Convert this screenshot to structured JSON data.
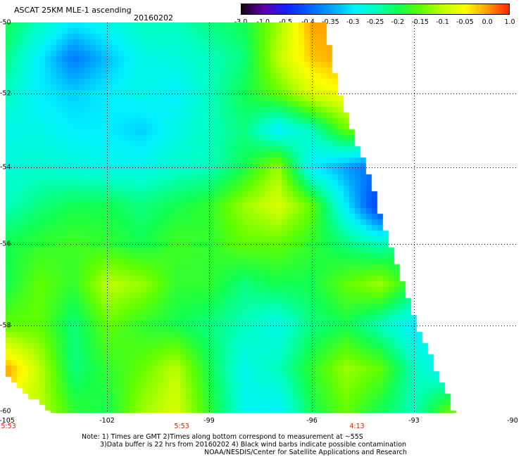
{
  "header": {
    "title": "ASCAT 25KM MLE-1 ascending",
    "date": "20160202"
  },
  "colorbar": {
    "labels": [
      "-3.0",
      "-1.0",
      "-0.5",
      "-0.4",
      "-0.35",
      "-0.3",
      "-0.25",
      "-0.2",
      "-0.15",
      "-0.1",
      "-0.05",
      "0.0",
      "1.0"
    ],
    "values": [
      -3.0,
      -1.0,
      -0.5,
      -0.4,
      -0.35,
      -0.3,
      -0.25,
      -0.2,
      -0.15,
      -0.1,
      -0.05,
      0.0,
      1.0
    ],
    "colors": [
      "#1a0018",
      "#6000b0",
      "#1020ff",
      "#0060ff",
      "#00a0ff",
      "#00f0ff",
      "#00ffc0",
      "#10ff50",
      "#60ff00",
      "#c0ff00",
      "#ffff00",
      "#ffa000",
      "#ff2000"
    ]
  },
  "axes": {
    "lat_labels": [
      "-50",
      "-52",
      "-54",
      "-56",
      "-58",
      "-60"
    ],
    "lon_labels": [
      "-105",
      "-102",
      "-99",
      "-96",
      "-93",
      "-90"
    ],
    "time_labels": [
      "5:53",
      "5:53",
      "4:13"
    ]
  },
  "notes": [
    "Note: 1) Times are GMT 2)Times along bottom correspond to measurement at ~55S",
    "3)Data buffer is 22 hrs from 20160202 4) Black wind barbs indicate possible contamination",
    "NOAA/NESDIS/Center for Satellite Applications and Research"
  ],
  "chart_data": {
    "type": "heatmap",
    "lon_range": [
      -105,
      -90
    ],
    "lat_range": [
      -50,
      -60
    ],
    "grid_lons": [
      -105,
      -104,
      -103,
      -102,
      -101,
      -100,
      -99,
      -98,
      -97,
      -96,
      -95,
      -94,
      -93,
      -92
    ],
    "grid_lats": [
      -50,
      -51,
      -52,
      -53,
      -54,
      -55,
      -56,
      -57,
      -58,
      -59,
      -60
    ],
    "values": [
      [
        -0.2,
        -0.25,
        -0.3,
        -0.28,
        -0.25,
        -0.25,
        -0.22,
        -0.2,
        -0.12,
        0.0,
        0.0,
        null,
        null,
        null
      ],
      [
        -0.22,
        -0.3,
        -0.38,
        -0.33,
        -0.28,
        -0.27,
        -0.25,
        -0.22,
        -0.1,
        -0.02,
        0.0,
        null,
        null,
        null
      ],
      [
        -0.25,
        -0.3,
        -0.32,
        -0.3,
        -0.28,
        -0.3,
        -0.25,
        -0.2,
        -0.15,
        -0.08,
        -0.05,
        null,
        null,
        null
      ],
      [
        -0.28,
        -0.28,
        -0.3,
        -0.3,
        -0.32,
        -0.28,
        -0.25,
        -0.22,
        -0.3,
        -0.25,
        -0.15,
        -0.15,
        null,
        null
      ],
      [
        -0.27,
        -0.26,
        -0.27,
        -0.28,
        -0.28,
        -0.26,
        -0.25,
        -0.2,
        -0.12,
        -0.3,
        -0.35,
        -0.4,
        null,
        null
      ],
      [
        -0.25,
        -0.22,
        -0.2,
        -0.2,
        -0.22,
        -0.2,
        -0.18,
        -0.12,
        -0.08,
        -0.15,
        -0.3,
        -0.45,
        -0.3,
        null
      ],
      [
        -0.2,
        -0.18,
        -0.17,
        -0.18,
        -0.2,
        -0.17,
        -0.18,
        -0.15,
        -0.15,
        -0.18,
        -0.22,
        -0.25,
        -0.2,
        null
      ],
      [
        -0.2,
        -0.15,
        -0.18,
        -0.1,
        -0.12,
        -0.18,
        -0.18,
        -0.22,
        -0.2,
        -0.2,
        -0.15,
        -0.12,
        -0.2,
        null
      ],
      [
        -0.15,
        -0.15,
        -0.22,
        -0.15,
        -0.18,
        -0.2,
        -0.22,
        -0.25,
        -0.28,
        -0.22,
        -0.2,
        -0.25,
        -0.3,
        -0.3
      ],
      [
        0.0,
        -0.1,
        -0.22,
        -0.18,
        -0.15,
        -0.1,
        -0.2,
        -0.28,
        -0.25,
        -0.18,
        -0.12,
        -0.15,
        -0.25,
        -0.3
      ],
      [
        null,
        -0.1,
        -0.18,
        -0.2,
        -0.12,
        -0.08,
        -0.18,
        -0.28,
        -0.3,
        -0.2,
        -0.15,
        -0.2,
        -0.25,
        -0.15
      ]
    ],
    "swath_east_edge": [
      [
        -50,
        -95.6
      ],
      [
        -52,
        -95.2
      ],
      [
        -54,
        -94.4
      ],
      [
        -56,
        -93.7
      ],
      [
        -58,
        -92.9
      ],
      [
        -60,
        -91.8
      ]
    ],
    "grid": true
  }
}
